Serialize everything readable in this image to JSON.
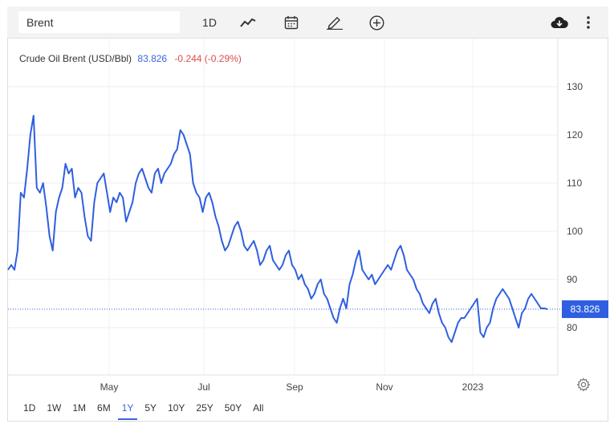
{
  "toolbar": {
    "symbol_value": "Brent",
    "interval_label": "1D",
    "icons": [
      "line-chart-icon",
      "calendar-icon",
      "pencil-icon",
      "plus-circle-icon",
      "cloud-download-icon",
      "more-vertical-icon"
    ]
  },
  "legend": {
    "name": "Crude Oil Brent (USD/Bbl)",
    "price": "83.826",
    "change": "-0.244 (-0.29%)"
  },
  "ranges": [
    "1D",
    "1W",
    "1M",
    "6M",
    "1Y",
    "5Y",
    "10Y",
    "25Y",
    "50Y",
    "All"
  ],
  "active_range": "1Y",
  "colors": {
    "line": "#2f5fe0",
    "price_tag": "#2f5fe0",
    "negative": "#e04b4b"
  },
  "chart_data": {
    "type": "line",
    "title": "Crude Oil Brent (USD/Bbl)",
    "ylim": [
      70,
      140
    ],
    "yticks": [
      80,
      90,
      100,
      110,
      120,
      130
    ],
    "xticks": [
      "May",
      "Jul",
      "Sep",
      "Nov",
      "2023"
    ],
    "last_value": 83.826,
    "grid": true,
    "series": [
      {
        "name": "Brent",
        "values": [
          92,
          93,
          92,
          96,
          108,
          107,
          113,
          120,
          124,
          109,
          108,
          110,
          105,
          99,
          96,
          104,
          107,
          109,
          114,
          112,
          113,
          107,
          109,
          108,
          103,
          99,
          98,
          106,
          110,
          111,
          112,
          108,
          104,
          107,
          106,
          108,
          107,
          102,
          104,
          106,
          110,
          112,
          113,
          111,
          109,
          108,
          112,
          113,
          110,
          112,
          113,
          114,
          116,
          117,
          121,
          120,
          118,
          116,
          110,
          108,
          107,
          104,
          107,
          108,
          106,
          103,
          101,
          98,
          96,
          97,
          99,
          101,
          102,
          100,
          97,
          96,
          97,
          98,
          96,
          93,
          94,
          96,
          97,
          94,
          93,
          92,
          93,
          95,
          96,
          93,
          92,
          90,
          91,
          89,
          88,
          86,
          87,
          89,
          90,
          87,
          86,
          84,
          82,
          81,
          84,
          86,
          84,
          89,
          91,
          94,
          96,
          92,
          91,
          90,
          91,
          89,
          90,
          91,
          92,
          93,
          92,
          94,
          96,
          97,
          95,
          92,
          91,
          90,
          88,
          87,
          85,
          84,
          83,
          85,
          86,
          83,
          81,
          80,
          78,
          77,
          79,
          81,
          82,
          82,
          83,
          84,
          85,
          86,
          79,
          78,
          80,
          81,
          84,
          86,
          87,
          88,
          87,
          86,
          84,
          82,
          80,
          83,
          84,
          86,
          87,
          86,
          85,
          84,
          84,
          83.826
        ]
      }
    ]
  }
}
